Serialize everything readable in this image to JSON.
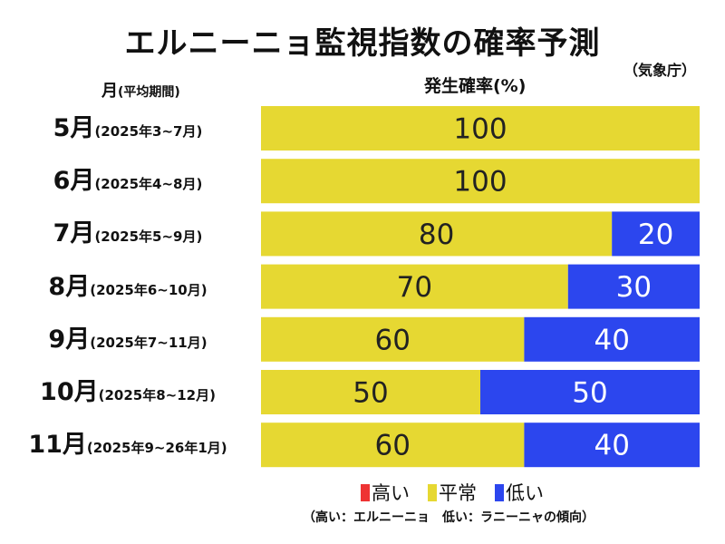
{
  "title": "エルニーニョ監視指数の確率予測",
  "source": "（気象庁）",
  "month_header": {
    "main": "月",
    "sub": "(平均期間)"
  },
  "value_header": "発生確率(%)",
  "legend_items": [
    {
      "label": "高い",
      "color": "#ee3333"
    },
    {
      "label": "平常",
      "color": "#e6d832"
    },
    {
      "label": "低い",
      "color": "#2c46ee"
    }
  ],
  "note": "（高い：エルニーニョ　低い：ラニーニャの傾向）",
  "chart_data": {
    "type": "bar",
    "orientation": "horizontal",
    "stacked": true,
    "title": "エルニーニョ監視指数の確率予測",
    "xlabel": "発生確率(%)",
    "ylabel": "月(平均期間)",
    "xlim": [
      0,
      100
    ],
    "categories": [
      "5月",
      "6月",
      "7月",
      "8月",
      "9月",
      "10月",
      "11月"
    ],
    "periods": [
      "(2025年3~7月)",
      "(2025年4~8月)",
      "(2025年5~9月)",
      "(2025年6~10月)",
      "(2025年7~11月)",
      "(2025年8~12月)",
      "(2025年9~26年1月)"
    ],
    "series": [
      {
        "name": "高い",
        "color": "#ee3333",
        "values": [
          0,
          0,
          0,
          0,
          0,
          0,
          0
        ]
      },
      {
        "name": "平常",
        "color": "#e6d832",
        "values": [
          100,
          100,
          80,
          70,
          60,
          50,
          60
        ]
      },
      {
        "name": "低い",
        "color": "#2c46ee",
        "values": [
          0,
          0,
          20,
          30,
          40,
          50,
          40
        ]
      }
    ],
    "legend": "bottom"
  }
}
